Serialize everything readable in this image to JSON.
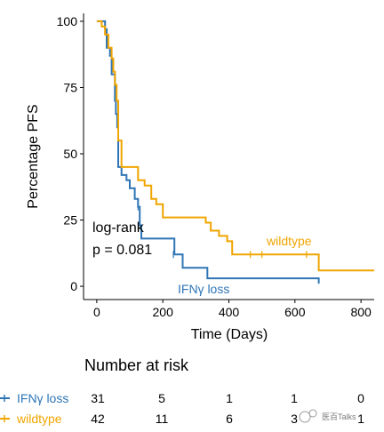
{
  "chart_data": {
    "type": "line",
    "step": true,
    "xlabel": "Time (Days)",
    "ylabel": "Percentage PFS",
    "xlim": [
      -40,
      840
    ],
    "ylim": [
      -5,
      103
    ],
    "xticks": [
      0,
      200,
      400,
      600,
      800
    ],
    "yticks": [
      0,
      25,
      50,
      75,
      100
    ],
    "grid": false,
    "annotation": [
      "log-rank",
      "p = 0.081"
    ],
    "series": [
      {
        "name": "IFNγ loss",
        "color": "#2E75B6",
        "points": [
          [
            0,
            100
          ],
          [
            20,
            100
          ],
          [
            25,
            97
          ],
          [
            30,
            90
          ],
          [
            40,
            87
          ],
          [
            45,
            80
          ],
          [
            55,
            70
          ],
          [
            58,
            65
          ],
          [
            62,
            60
          ],
          [
            65,
            45
          ],
          [
            75,
            42
          ],
          [
            90,
            40
          ],
          [
            100,
            37
          ],
          [
            115,
            33
          ],
          [
            125,
            30
          ],
          [
            130,
            23
          ],
          [
            135,
            18
          ],
          [
            180,
            18
          ],
          [
            220,
            18
          ],
          [
            235,
            12
          ],
          [
            255,
            12
          ],
          [
            260,
            7
          ],
          [
            330,
            7
          ],
          [
            335,
            3
          ],
          [
            672,
            3
          ]
        ],
        "end": [
          672,
          1
        ],
        "censor": [
          [
            125,
            30
          ],
          [
            232,
            12
          ]
        ]
      },
      {
        "name": "wildtype",
        "color": "#F0A500",
        "points": [
          [
            0,
            100
          ],
          [
            12,
            100
          ],
          [
            15,
            98
          ],
          [
            25,
            95
          ],
          [
            35,
            90
          ],
          [
            45,
            86
          ],
          [
            50,
            81
          ],
          [
            55,
            76
          ],
          [
            60,
            70
          ],
          [
            65,
            55
          ],
          [
            75,
            45
          ],
          [
            115,
            45
          ],
          [
            125,
            40
          ],
          [
            145,
            38
          ],
          [
            165,
            33
          ],
          [
            180,
            31
          ],
          [
            200,
            26
          ],
          [
            300,
            26
          ],
          [
            330,
            24
          ],
          [
            345,
            21
          ],
          [
            370,
            19
          ],
          [
            395,
            17
          ],
          [
            410,
            12
          ],
          [
            672,
            12
          ],
          [
            672,
            6
          ],
          [
            840,
            6
          ]
        ],
        "censor": [
          [
            465,
            12
          ],
          [
            500,
            12
          ],
          [
            635,
            12
          ]
        ]
      }
    ],
    "risk_table": {
      "title": "Number at risk",
      "times": [
        0,
        200,
        400,
        600,
        800
      ],
      "rows": [
        {
          "name": "IFNγ loss",
          "color": "#2E75B6",
          "values": [
            "31",
            "5",
            "1",
            "1",
            "0"
          ]
        },
        {
          "name": "wildtype",
          "color": "#F0A500",
          "values": [
            "42",
            "11",
            "6",
            "3",
            "1"
          ]
        }
      ]
    }
  },
  "watermark": "医百Talks"
}
